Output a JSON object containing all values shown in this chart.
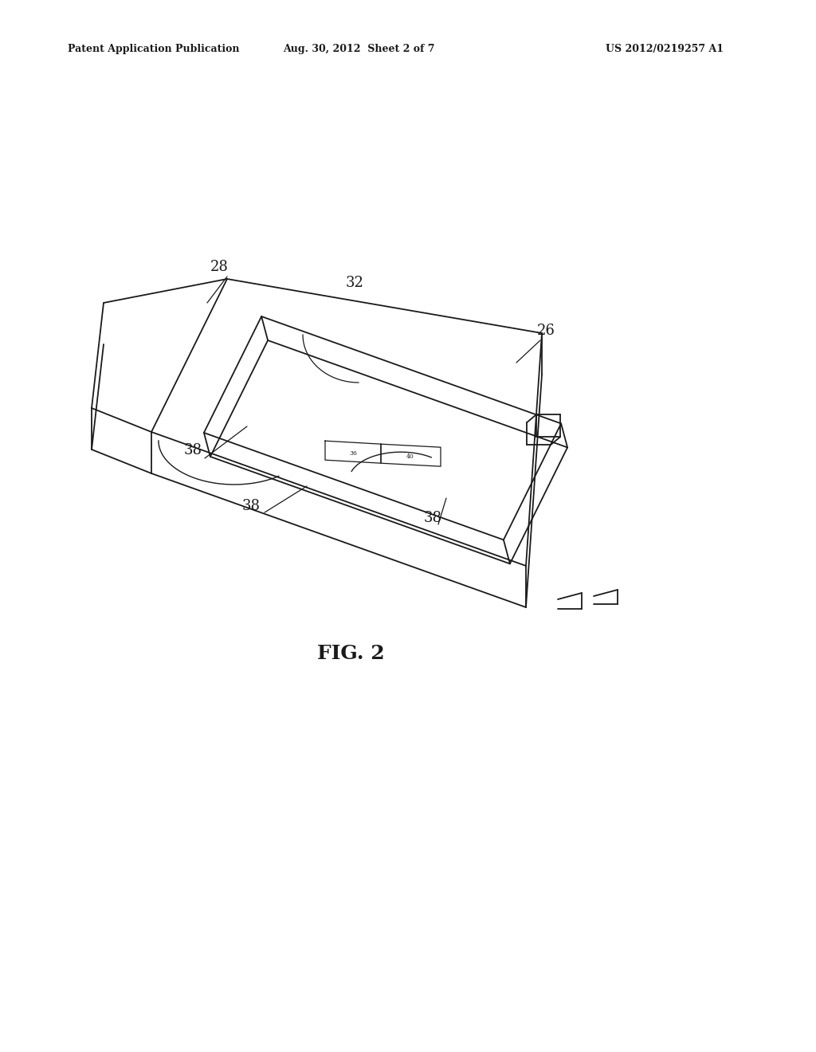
{
  "background_color": "#ffffff",
  "line_color": "#1a1a1a",
  "line_width": 1.3,
  "header_left": "Patent Application Publication",
  "header_center": "Aug. 30, 2012  Sheet 2 of 7",
  "header_right": "US 2012/0219257 A1",
  "figure_label": "FIG. 2"
}
